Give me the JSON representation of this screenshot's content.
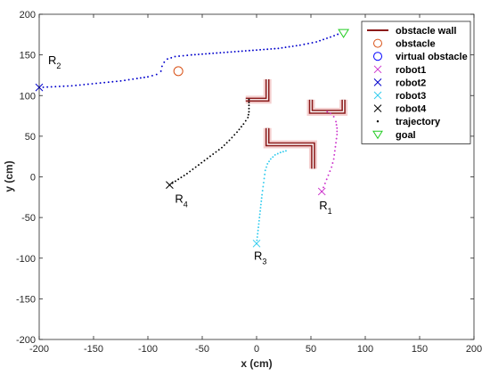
{
  "chart_data": {
    "type": "scatter",
    "title": "",
    "xlabel": "x (cm)",
    "ylabel": "y (cm)",
    "xlim": [
      -200,
      200
    ],
    "ylim": [
      -200,
      200
    ],
    "xticks": [
      -200,
      -150,
      -100,
      -50,
      0,
      50,
      100,
      150,
      200
    ],
    "yticks": [
      -200,
      -150,
      -100,
      -50,
      0,
      50,
      100,
      150,
      200
    ],
    "grid": false,
    "legend_position": "top-right",
    "legend": [
      {
        "label": "obstacle wall",
        "kind": "line",
        "color": "#8b1a1a"
      },
      {
        "label": "obstacle",
        "kind": "circle",
        "color": "#d95319"
      },
      {
        "label": "virtual obstacle",
        "kind": "circle",
        "color": "#0000ff"
      },
      {
        "label": "robot1",
        "kind": "x",
        "color": "#cc33cc"
      },
      {
        "label": "robot2",
        "kind": "x",
        "color": "#0000cc"
      },
      {
        "label": "robot3",
        "kind": "x",
        "color": "#33ccee"
      },
      {
        "label": "robot4",
        "kind": "x",
        "color": "#000000"
      },
      {
        "label": "trajectory",
        "kind": "dot",
        "color": "#000000"
      },
      {
        "label": "goal",
        "kind": "triangle",
        "color": "#22cc22"
      }
    ],
    "walls": [
      {
        "points": [
          [
            -10,
            95
          ],
          [
            10,
            95
          ],
          [
            10,
            120
          ]
        ]
      },
      {
        "points": [
          [
            50,
            95
          ],
          [
            50,
            80
          ],
          [
            80,
            80
          ],
          [
            80,
            95
          ]
        ]
      },
      {
        "points": [
          [
            10,
            60
          ],
          [
            10,
            40
          ],
          [
            52,
            40
          ],
          [
            52,
            10
          ]
        ]
      }
    ],
    "obstacles": [
      {
        "x": -72,
        "y": 130
      }
    ],
    "goal": {
      "x": 80,
      "y": 177
    },
    "robots": [
      {
        "name": "robot1",
        "label": "R",
        "subscript": "1",
        "start": {
          "x": 60,
          "y": -18
        },
        "color": "#cc33cc",
        "trajectory": [
          [
            60,
            -18
          ],
          [
            63,
            -8
          ],
          [
            66,
            2
          ],
          [
            69,
            12
          ],
          [
            71,
            22
          ],
          [
            72,
            32
          ],
          [
            73,
            42
          ],
          [
            74,
            52
          ],
          [
            74,
            60
          ],
          [
            73,
            68
          ],
          [
            71,
            74
          ],
          [
            68,
            78
          ],
          [
            65,
            80
          ],
          [
            63,
            81
          ]
        ]
      },
      {
        "name": "robot2",
        "label": "R",
        "subscript": "2",
        "start": {
          "x": -200,
          "y": 110
        },
        "color": "#0000cc",
        "trajectory": [
          [
            -200,
            110
          ],
          [
            -185,
            111
          ],
          [
            -170,
            112
          ],
          [
            -155,
            114
          ],
          [
            -140,
            116
          ],
          [
            -125,
            118
          ],
          [
            -110,
            121
          ],
          [
            -100,
            123
          ],
          [
            -92,
            126
          ],
          [
            -88,
            130
          ],
          [
            -87,
            136
          ],
          [
            -85,
            141
          ],
          [
            -82,
            145
          ],
          [
            -75,
            148
          ],
          [
            -60,
            150
          ],
          [
            -40,
            152
          ],
          [
            -20,
            154
          ],
          [
            0,
            156
          ],
          [
            20,
            158
          ],
          [
            40,
            162
          ],
          [
            55,
            166
          ],
          [
            68,
            172
          ],
          [
            78,
            177
          ]
        ]
      },
      {
        "name": "robot3",
        "label": "R",
        "subscript": "3",
        "start": {
          "x": 0,
          "y": -82
        },
        "color": "#33ccee",
        "trajectory": [
          [
            0,
            -82
          ],
          [
            1,
            -70
          ],
          [
            2,
            -58
          ],
          [
            3,
            -46
          ],
          [
            4,
            -34
          ],
          [
            5,
            -22
          ],
          [
            6,
            -12
          ],
          [
            7,
            -2
          ],
          [
            8,
            8
          ],
          [
            10,
            16
          ],
          [
            13,
            22
          ],
          [
            17,
            27
          ],
          [
            22,
            30
          ],
          [
            27,
            32
          ],
          [
            32,
            32
          ]
        ]
      },
      {
        "name": "robot4",
        "label": "R",
        "subscript": "4",
        "start": {
          "x": -80,
          "y": -10
        },
        "color": "#000000",
        "trajectory": [
          [
            -80,
            -10
          ],
          [
            -72,
            -3
          ],
          [
            -64,
            4
          ],
          [
            -56,
            12
          ],
          [
            -48,
            20
          ],
          [
            -40,
            28
          ],
          [
            -32,
            36
          ],
          [
            -25,
            45
          ],
          [
            -18,
            55
          ],
          [
            -12,
            65
          ],
          [
            -8,
            73
          ],
          [
            -7,
            80
          ],
          [
            -7,
            88
          ],
          [
            -7,
            95
          ],
          [
            -7,
            101
          ]
        ]
      }
    ]
  }
}
